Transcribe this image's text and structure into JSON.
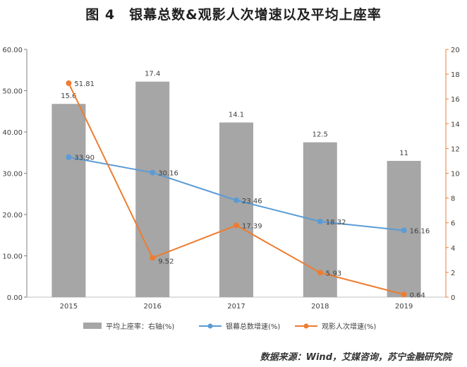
{
  "title": "图 4　银幕总数&观影人次增速以及平均上座率",
  "source": "数据来源：Wind，艾媒咨询，苏宁金融研究院",
  "colors": {
    "bar": "#a6a6a6",
    "blue": "#5b9bd5",
    "orange": "#ed7d31",
    "axis_left": "#7f7f7f",
    "axis_right": "#ed7d31"
  },
  "chart_data": {
    "type": "bar",
    "categories": [
      "2015",
      "2016",
      "2017",
      "2018",
      "2019"
    ],
    "series": [
      {
        "name": "平均上座率：右轴(%)",
        "type": "bar",
        "axis": "right",
        "values": [
          15.6,
          17.4,
          14.1,
          12.5,
          11
        ],
        "labels": [
          "15.6",
          "17.4",
          "14.1",
          "12.5",
          "11"
        ]
      },
      {
        "name": "银幕总数增速(%)",
        "type": "line",
        "axis": "left",
        "values": [
          33.9,
          30.16,
          23.46,
          18.32,
          16.16
        ],
        "labels": [
          "33.90",
          "30.16",
          "23.46",
          "18.32",
          "16.16"
        ]
      },
      {
        "name": "观影人次增速(%)",
        "type": "line",
        "axis": "left",
        "values": [
          51.81,
          9.52,
          17.39,
          5.93,
          0.64
        ],
        "labels": [
          "51.81",
          "9.52",
          "17.39",
          "5.93",
          "0.64"
        ]
      }
    ],
    "left_axis": {
      "min": 0,
      "max": 60,
      "ticks": [
        "0.00",
        "10.00",
        "20.00",
        "30.00",
        "40.00",
        "50.00",
        "60.00"
      ]
    },
    "right_axis": {
      "min": 0,
      "max": 20,
      "ticks": [
        "0",
        "2",
        "4",
        "6",
        "8",
        "10",
        "12",
        "14",
        "16",
        "18",
        "20"
      ]
    },
    "grid": false,
    "legend_position": "bottom"
  }
}
